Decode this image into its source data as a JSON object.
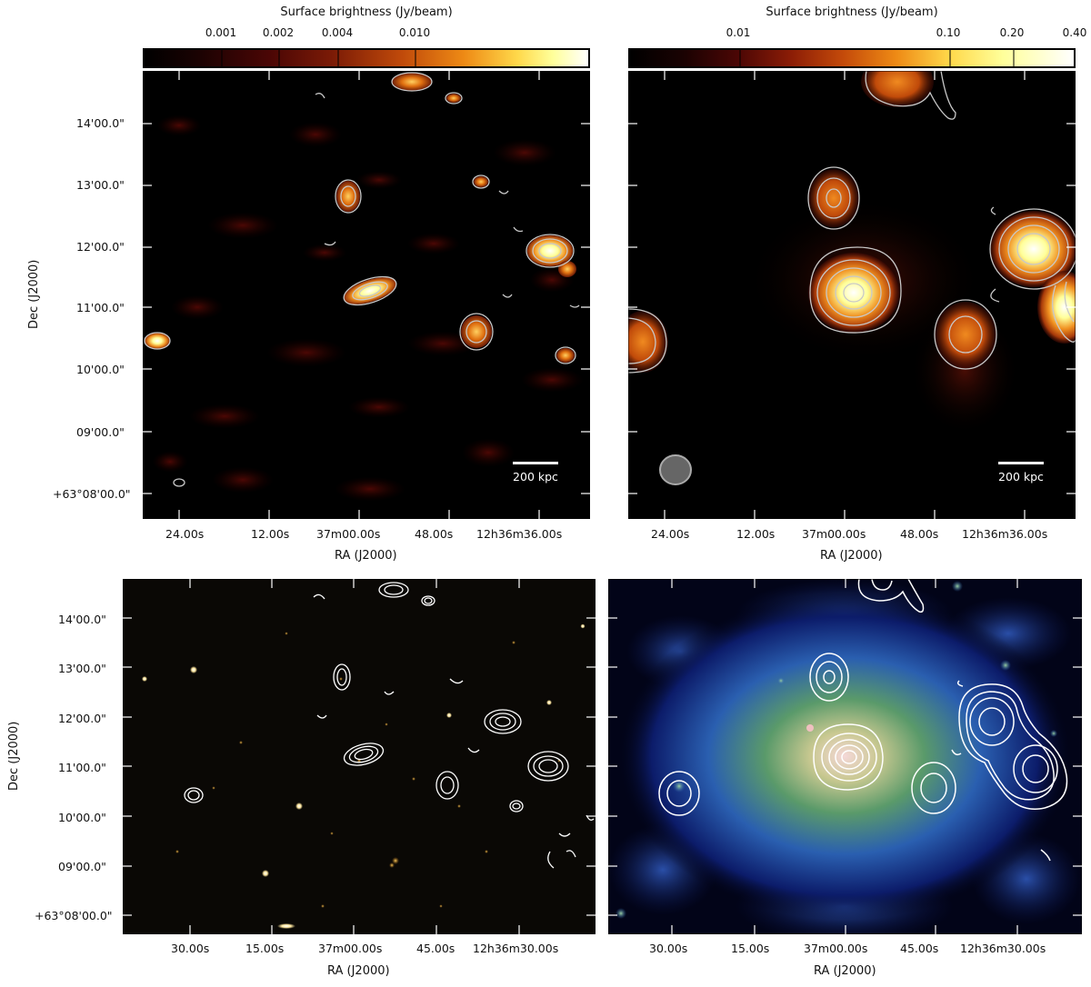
{
  "panel_tl": {
    "colorbar_title": "Surface brightness (Jy/beam)",
    "colorbar_ticks": [
      "0.001",
      "0.002",
      "0.004",
      "0.010"
    ],
    "y_ticks": [
      "14'00.0\"",
      "13'00.0\"",
      "12'00.0\"",
      "11'00.0\"",
      "10'00.0\"",
      "09'00.0\"",
      "+63°08'00.0\""
    ],
    "x_ticks": [
      "24.00s",
      "12.00s",
      "37m00.00s",
      "48.00s",
      "12h36m36.00s"
    ],
    "xlabel": "RA (J2000)",
    "ylabel": "Dec (J2000)",
    "scale_label": "200 kpc"
  },
  "panel_tr": {
    "colorbar_title": "Surface brightness (Jy/beam)",
    "colorbar_ticks": [
      "0.01",
      "0.10",
      "0.20",
      "0.40"
    ],
    "x_ticks": [
      "24.00s",
      "12.00s",
      "37m00.00s",
      "48.00s",
      "12h36m36.00s"
    ],
    "xlabel": "RA (J2000)",
    "scale_label": "200 kpc"
  },
  "panel_bl": {
    "y_ticks": [
      "14'00.0\"",
      "13'00.0\"",
      "12'00.0\"",
      "11'00.0\"",
      "10'00.0\"",
      "09'00.0\"",
      "+63°08'00.0\""
    ],
    "x_ticks": [
      "30.00s",
      "15.00s",
      "37m00.00s",
      "45.00s",
      "12h36m30.00s"
    ],
    "xlabel": "RA (J2000)",
    "ylabel": "Dec (J2000)"
  },
  "panel_br": {
    "x_ticks": [
      "30.00s",
      "15.00s",
      "37m00.00s",
      "45.00s",
      "12h36m30.00s"
    ],
    "xlabel": "RA (J2000)"
  },
  "colors": {
    "radio_bg": "#000000",
    "radio_low": "#5a0a05",
    "radio_mid": "#e0600a",
    "radio_high": "#ffff99",
    "contour": "#c8c8c8",
    "xray_bg": "#050a30",
    "xray_mid": "#2a5fb0",
    "xray_core": "#f0c8c8"
  }
}
